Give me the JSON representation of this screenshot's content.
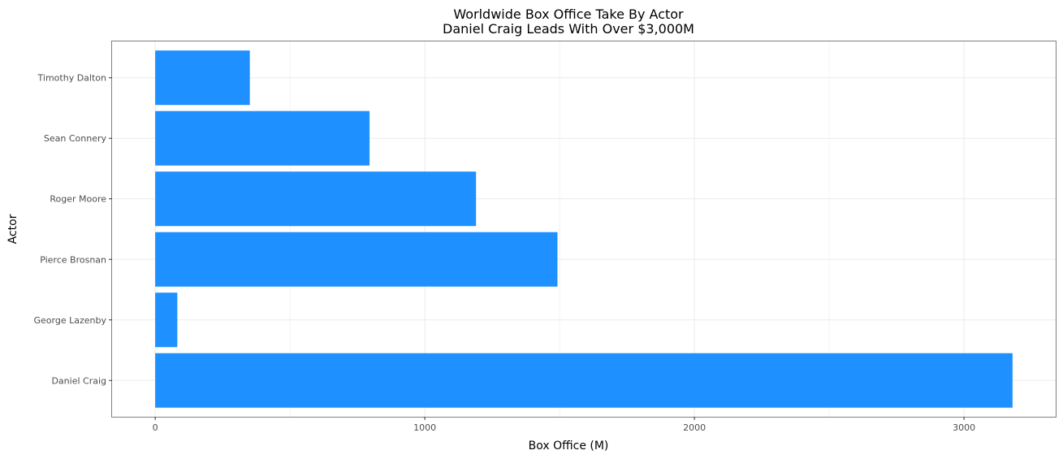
{
  "chart_data": {
    "type": "bar",
    "orientation": "horizontal",
    "title": "Worldwide Box Office Take By Actor",
    "subtitle": "Daniel Craig Leads With Over $3,000M",
    "xlabel": "Box Office (M)",
    "ylabel": "Actor",
    "categories": [
      "Daniel Craig",
      "George Lazenby",
      "Pierce Brosnan",
      "Roger Moore",
      "Sean Connery",
      "Timothy Dalton"
    ],
    "values": [
      3180,
      82,
      1492,
      1190,
      795,
      351
    ],
    "xlim": [
      -160,
      3340
    ],
    "xticks": [
      0,
      1000,
      2000,
      3000
    ],
    "xtick_labels": [
      "0",
      "1000",
      "2000",
      "3000"
    ],
    "grid": true,
    "legend": "none",
    "bar_color": "#1E90FF",
    "grid_color": "#ebebeb",
    "panel_border_color": "#7f7f7f"
  }
}
